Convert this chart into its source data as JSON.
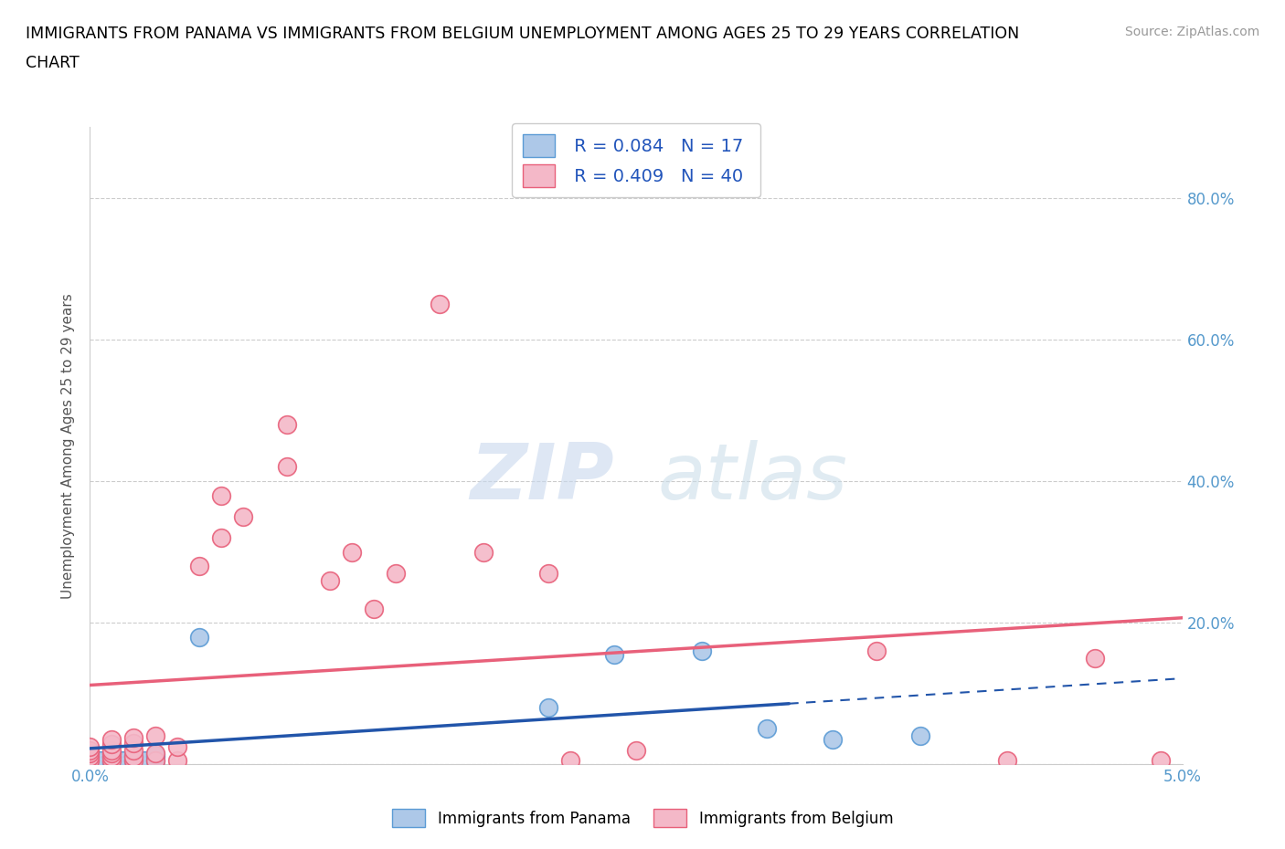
{
  "title_line1": "IMMIGRANTS FROM PANAMA VS IMMIGRANTS FROM BELGIUM UNEMPLOYMENT AMONG AGES 25 TO 29 YEARS CORRELATION",
  "title_line2": "CHART",
  "source_text": "Source: ZipAtlas.com",
  "ylabel": "Unemployment Among Ages 25 to 29 years",
  "xlim": [
    0.0,
    0.05
  ],
  "ylim": [
    0.0,
    0.9
  ],
  "panama_color": "#adc8e8",
  "panama_edge_color": "#5b9bd5",
  "belgium_color": "#f4b8c8",
  "belgium_edge_color": "#e8607a",
  "panama_R": 0.084,
  "panama_N": 17,
  "belgium_R": 0.409,
  "belgium_N": 40,
  "watermark_zip": "ZIP",
  "watermark_atlas": "atlas",
  "panama_line_color": "#2255aa",
  "panama_line_solid_end": 0.032,
  "belgium_line_color": "#e8607a",
  "grid_color": "#cccccc",
  "bg_color": "#ffffff",
  "tick_color": "#5599cc",
  "panama_x": [
    0.0005,
    0.001,
    0.001,
    0.0015,
    0.002,
    0.002,
    0.0025,
    0.003,
    0.003,
    0.003,
    0.005,
    0.021,
    0.024,
    0.028,
    0.031,
    0.034,
    0.038
  ],
  "panama_y": [
    0.005,
    0.003,
    0.01,
    0.005,
    0.005,
    0.012,
    0.005,
    0.005,
    0.01,
    0.013,
    0.18,
    0.08,
    0.155,
    0.16,
    0.05,
    0.035,
    0.04
  ],
  "belgium_x": [
    0.0,
    0.0,
    0.0,
    0.0,
    0.0,
    0.001,
    0.001,
    0.001,
    0.001,
    0.001,
    0.001,
    0.002,
    0.002,
    0.002,
    0.002,
    0.002,
    0.003,
    0.003,
    0.003,
    0.004,
    0.004,
    0.005,
    0.006,
    0.006,
    0.007,
    0.009,
    0.009,
    0.011,
    0.012,
    0.013,
    0.014,
    0.016,
    0.018,
    0.021,
    0.022,
    0.025,
    0.036,
    0.042,
    0.046,
    0.049
  ],
  "belgium_y": [
    0.005,
    0.01,
    0.015,
    0.02,
    0.025,
    0.005,
    0.01,
    0.015,
    0.02,
    0.028,
    0.035,
    0.005,
    0.01,
    0.02,
    0.03,
    0.038,
    0.005,
    0.015,
    0.04,
    0.005,
    0.025,
    0.28,
    0.32,
    0.38,
    0.35,
    0.42,
    0.48,
    0.26,
    0.3,
    0.22,
    0.27,
    0.65,
    0.3,
    0.27,
    0.005,
    0.02,
    0.16,
    0.005,
    0.15,
    0.005
  ]
}
